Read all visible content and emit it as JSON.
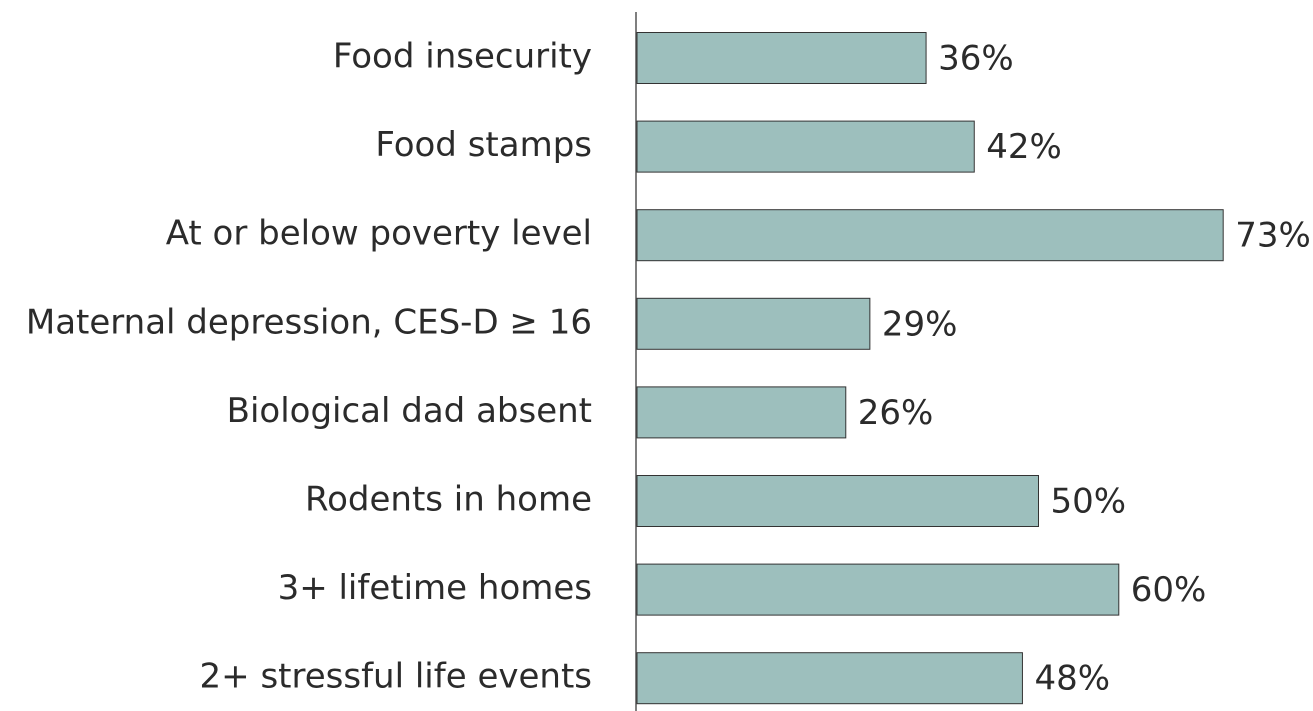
{
  "chart_data": {
    "type": "bar",
    "orientation": "horizontal",
    "categories": [
      "Food insecurity",
      "Food stamps",
      "At or below poverty level",
      "Maternal depression, CES-D ≥ 16",
      "Biological dad absent",
      "Rodents in home",
      "3+ lifetime homes",
      "2+ stressful life events"
    ],
    "values": [
      36,
      42,
      73,
      29,
      26,
      50,
      60,
      48
    ],
    "value_labels": [
      "36%",
      "42%",
      "73%",
      "29%",
      "26%",
      "50%",
      "60%",
      "48%"
    ],
    "color": "#9dbfbd"
  }
}
